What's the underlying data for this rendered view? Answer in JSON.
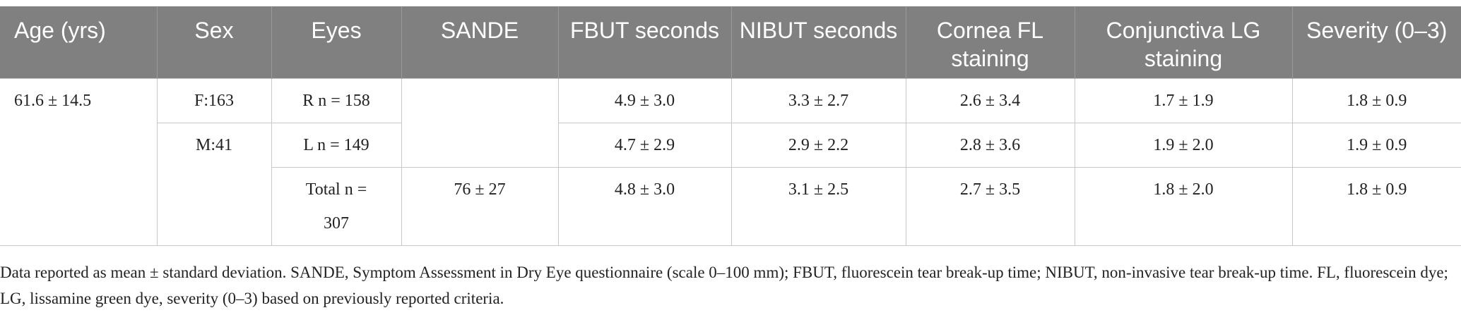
{
  "table": {
    "header": [
      "Age (yrs)",
      "Sex",
      "Eyes",
      "SANDE",
      "FBUT seconds",
      "NIBUT seconds",
      "Cornea FL staining",
      "Conjunctiva LG staining",
      "Severity (0–3)"
    ],
    "age": "61.6 ± 14.5",
    "sex": [
      "F:163",
      "M:41"
    ],
    "sande": "76 ± 27",
    "rows": [
      {
        "eyes": "R n = 158",
        "values": [
          "4.9 ± 3.0",
          "3.3 ± 2.7",
          "2.6 ± 3.4",
          "1.7 ± 1.9",
          "1.8 ± 0.9"
        ]
      },
      {
        "eyes": "L n = 149",
        "values": [
          "4.7 ± 2.9",
          "2.9 ± 2.2",
          "2.8 ± 3.6",
          "1.9 ± 2.0",
          "1.9 ± 0.9"
        ]
      },
      {
        "eyes": "Total n = 307",
        "values": [
          "4.8 ± 3.0",
          "3.1 ± 2.5",
          "2.7 ± 3.5",
          "1.8 ± 2.0",
          "1.8 ± 0.9"
        ]
      }
    ]
  },
  "footnote": "Data reported as mean ± standard deviation. SANDE, Symptom Assessment in Dry Eye questionnaire (scale 0–100 mm); FBUT, fluorescein tear break-up time; NIBUT, non-invasive tear break-up time. FL, fluorescein dye; LG, lissamine green dye, severity (0–3) based on previously reported criteria."
}
